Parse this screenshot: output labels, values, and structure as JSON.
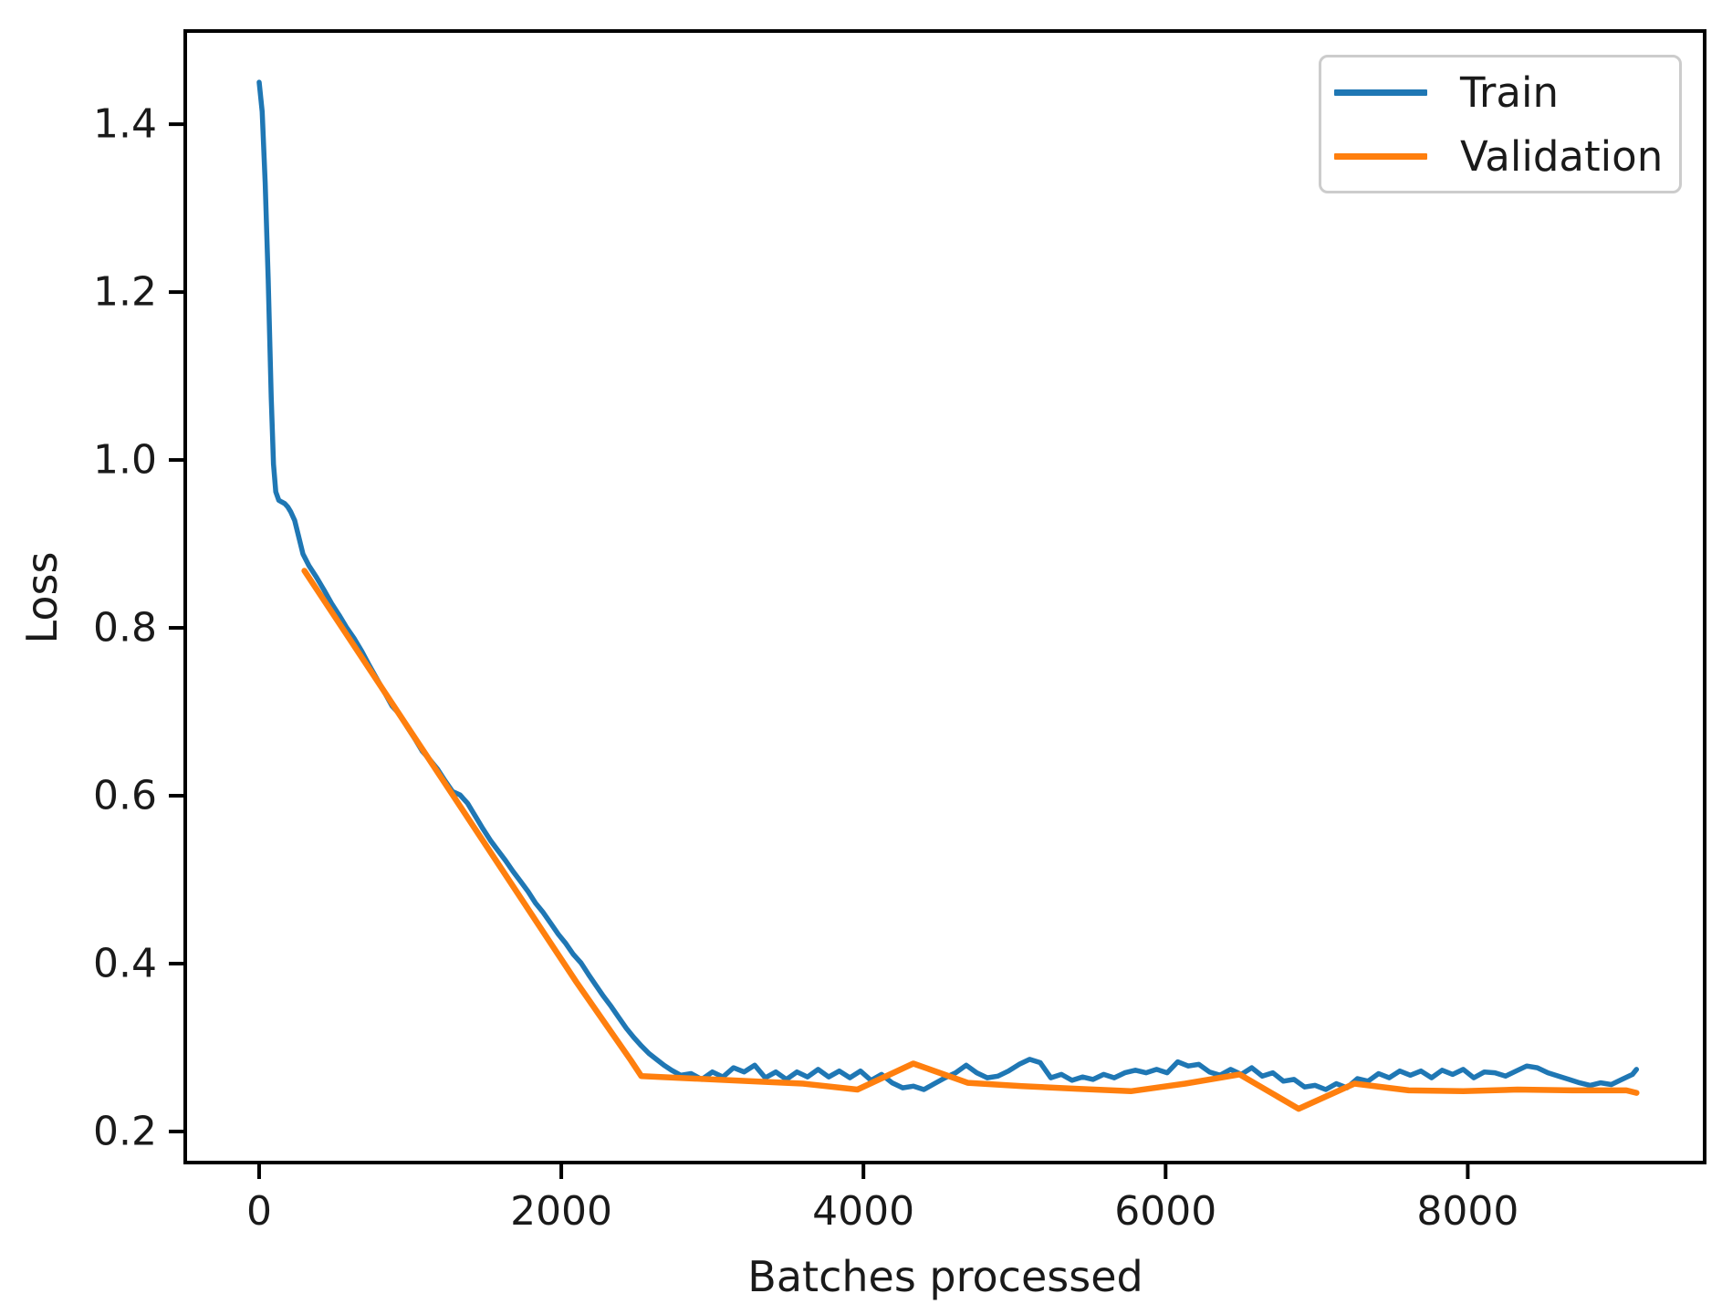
{
  "figure": {
    "background": "#ffffff",
    "axis_color": "#000000",
    "text_color": "#1a1a1a"
  },
  "legend": {
    "position": "upper right"
  },
  "chart_data": {
    "type": "line",
    "title": "",
    "xlabel": "Batches processed",
    "ylabel": "Loss",
    "grid": false,
    "legend_position": "upper right",
    "xlim": [
      -489,
      9568
    ],
    "ylim": [
      0.163,
      1.511
    ],
    "x_ticks": [
      0,
      2000,
      4000,
      6000,
      8000
    ],
    "x_tick_labels": [
      "0",
      "2000",
      "4000",
      "6000",
      "8000"
    ],
    "y_ticks": [
      0.2,
      0.4,
      0.6,
      0.8,
      1.0,
      1.2,
      1.4
    ],
    "y_tick_labels": [
      "0.2",
      "0.4",
      "0.6",
      "0.8",
      "1.0",
      "1.2",
      "1.4"
    ],
    "series": [
      {
        "name": "Train",
        "color": "#1f77b4",
        "points": [
          [
            0,
            1.45
          ],
          [
            20,
            1.415
          ],
          [
            40,
            1.33
          ],
          [
            60,
            1.215
          ],
          [
            80,
            1.075
          ],
          [
            95,
            0.995
          ],
          [
            110,
            0.962
          ],
          [
            130,
            0.952
          ],
          [
            150,
            0.95
          ],
          [
            170,
            0.948
          ],
          [
            190,
            0.944
          ],
          [
            210,
            0.938
          ],
          [
            235,
            0.928
          ],
          [
            260,
            0.91
          ],
          [
            290,
            0.888
          ],
          [
            330,
            0.874
          ],
          [
            380,
            0.86
          ],
          [
            430,
            0.845
          ],
          [
            480,
            0.829
          ],
          [
            530,
            0.815
          ],
          [
            580,
            0.8
          ],
          [
            630,
            0.787
          ],
          [
            680,
            0.772
          ],
          [
            730,
            0.755
          ],
          [
            780,
            0.739
          ],
          [
            830,
            0.723
          ],
          [
            880,
            0.707
          ],
          [
            930,
            0.697
          ],
          [
            980,
            0.682
          ],
          [
            1030,
            0.668
          ],
          [
            1080,
            0.653
          ],
          [
            1130,
            0.643
          ],
          [
            1180,
            0.632
          ],
          [
            1230,
            0.618
          ],
          [
            1280,
            0.605
          ],
          [
            1330,
            0.601
          ],
          [
            1380,
            0.591
          ],
          [
            1430,
            0.576
          ],
          [
            1480,
            0.561
          ],
          [
            1530,
            0.547
          ],
          [
            1580,
            0.535
          ],
          [
            1630,
            0.523
          ],
          [
            1680,
            0.51
          ],
          [
            1730,
            0.498
          ],
          [
            1780,
            0.486
          ],
          [
            1830,
            0.472
          ],
          [
            1880,
            0.461
          ],
          [
            1930,
            0.448
          ],
          [
            1980,
            0.435
          ],
          [
            2030,
            0.424
          ],
          [
            2080,
            0.411
          ],
          [
            2130,
            0.401
          ],
          [
            2180,
            0.387
          ],
          [
            2230,
            0.374
          ],
          [
            2280,
            0.361
          ],
          [
            2330,
            0.349
          ],
          [
            2380,
            0.336
          ],
          [
            2430,
            0.323
          ],
          [
            2480,
            0.312
          ],
          [
            2530,
            0.302
          ],
          [
            2580,
            0.293
          ],
          [
            2630,
            0.286
          ],
          [
            2680,
            0.279
          ],
          [
            2730,
            0.273
          ],
          [
            2790,
            0.267
          ],
          [
            2860,
            0.269
          ],
          [
            2930,
            0.262
          ],
          [
            3000,
            0.271
          ],
          [
            3070,
            0.265
          ],
          [
            3140,
            0.276
          ],
          [
            3210,
            0.271
          ],
          [
            3280,
            0.279
          ],
          [
            3350,
            0.264
          ],
          [
            3420,
            0.271
          ],
          [
            3490,
            0.262
          ],
          [
            3560,
            0.271
          ],
          [
            3630,
            0.265
          ],
          [
            3700,
            0.274
          ],
          [
            3770,
            0.265
          ],
          [
            3840,
            0.272
          ],
          [
            3910,
            0.264
          ],
          [
            3980,
            0.272
          ],
          [
            4050,
            0.261
          ],
          [
            4120,
            0.268
          ],
          [
            4190,
            0.258
          ],
          [
            4260,
            0.252
          ],
          [
            4330,
            0.254
          ],
          [
            4400,
            0.25
          ],
          [
            4470,
            0.257
          ],
          [
            4540,
            0.264
          ],
          [
            4610,
            0.27
          ],
          [
            4680,
            0.279
          ],
          [
            4750,
            0.27
          ],
          [
            4820,
            0.264
          ],
          [
            4890,
            0.266
          ],
          [
            4960,
            0.272
          ],
          [
            5030,
            0.28
          ],
          [
            5100,
            0.286
          ],
          [
            5170,
            0.282
          ],
          [
            5240,
            0.264
          ],
          [
            5310,
            0.268
          ],
          [
            5380,
            0.261
          ],
          [
            5450,
            0.265
          ],
          [
            5520,
            0.262
          ],
          [
            5590,
            0.268
          ],
          [
            5660,
            0.264
          ],
          [
            5730,
            0.27
          ],
          [
            5800,
            0.273
          ],
          [
            5870,
            0.27
          ],
          [
            5940,
            0.274
          ],
          [
            6010,
            0.27
          ],
          [
            6080,
            0.283
          ],
          [
            6150,
            0.278
          ],
          [
            6220,
            0.28
          ],
          [
            6290,
            0.271
          ],
          [
            6360,
            0.267
          ],
          [
            6430,
            0.274
          ],
          [
            6500,
            0.268
          ],
          [
            6570,
            0.276
          ],
          [
            6640,
            0.266
          ],
          [
            6710,
            0.27
          ],
          [
            6780,
            0.26
          ],
          [
            6850,
            0.262
          ],
          [
            6920,
            0.253
          ],
          [
            6990,
            0.255
          ],
          [
            7060,
            0.25
          ],
          [
            7130,
            0.257
          ],
          [
            7200,
            0.252
          ],
          [
            7270,
            0.263
          ],
          [
            7340,
            0.26
          ],
          [
            7410,
            0.269
          ],
          [
            7480,
            0.264
          ],
          [
            7550,
            0.272
          ],
          [
            7620,
            0.267
          ],
          [
            7690,
            0.272
          ],
          [
            7760,
            0.264
          ],
          [
            7830,
            0.273
          ],
          [
            7900,
            0.268
          ],
          [
            7970,
            0.274
          ],
          [
            8040,
            0.264
          ],
          [
            8110,
            0.271
          ],
          [
            8180,
            0.27
          ],
          [
            8250,
            0.266
          ],
          [
            8320,
            0.272
          ],
          [
            8390,
            0.278
          ],
          [
            8460,
            0.276
          ],
          [
            8530,
            0.27
          ],
          [
            8600,
            0.266
          ],
          [
            8670,
            0.262
          ],
          [
            8740,
            0.258
          ],
          [
            8810,
            0.255
          ],
          [
            8880,
            0.258
          ],
          [
            8950,
            0.256
          ],
          [
            9020,
            0.262
          ],
          [
            9090,
            0.268
          ],
          [
            9117,
            0.274
          ]
        ]
      },
      {
        "name": "Validation",
        "color": "#ff7f0e",
        "points": [
          [
            300,
            0.868
          ],
          [
            660,
            0.77
          ],
          [
            1020,
            0.672
          ],
          [
            1380,
            0.574
          ],
          [
            1740,
            0.476
          ],
          [
            2100,
            0.378
          ],
          [
            2460,
            0.285
          ],
          [
            2530,
            0.266
          ],
          [
            2880,
            0.263
          ],
          [
            3240,
            0.26
          ],
          [
            3600,
            0.257
          ],
          [
            3960,
            0.25
          ],
          [
            4330,
            0.281
          ],
          [
            4690,
            0.258
          ],
          [
            5050,
            0.254
          ],
          [
            5410,
            0.251
          ],
          [
            5770,
            0.248
          ],
          [
            6130,
            0.257
          ],
          [
            6490,
            0.268
          ],
          [
            6880,
            0.227
          ],
          [
            7250,
            0.257
          ],
          [
            7610,
            0.249
          ],
          [
            7970,
            0.248
          ],
          [
            8330,
            0.25
          ],
          [
            8690,
            0.249
          ],
          [
            9050,
            0.249
          ],
          [
            9117,
            0.246
          ]
        ]
      }
    ]
  }
}
